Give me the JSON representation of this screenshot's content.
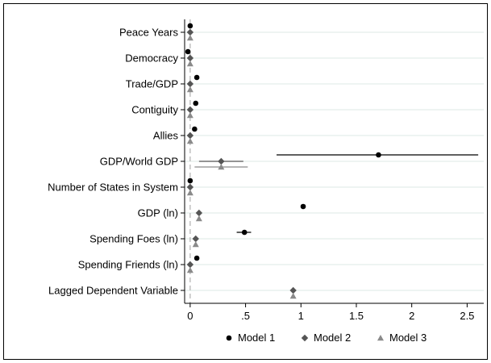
{
  "chart_data": {
    "type": "coefficient-dot-plot",
    "title": "",
    "xlabel": "",
    "ylabel": "",
    "xlim": [
      -0.05,
      2.65
    ],
    "x_ticks": [
      0,
      0.5,
      1,
      1.5,
      2,
      2.5
    ],
    "x_tick_labels": [
      "0",
      ".5",
      "1",
      "1.5",
      "2",
      "2.5"
    ],
    "reference_line_x": 0,
    "grid": "horizontal",
    "legend_position": "bottom",
    "categories": [
      "Peace Years",
      "Democracy",
      "Trade/GDP",
      "Contiguity",
      "Allies",
      "GDP/World GDP",
      "Number of States in System",
      "GDP (ln)",
      "Spending Foes (ln)",
      "Spending Friends (ln)",
      "Lagged Dependent Variable"
    ],
    "series": [
      {
        "name": "Model 1",
        "marker": "circle",
        "color": "#000000",
        "values": [
          0.0,
          -0.02,
          0.06,
          0.05,
          0.04,
          1.7,
          0.0,
          1.02,
          0.49,
          0.06,
          null
        ],
        "ci": [
          null,
          null,
          null,
          null,
          null,
          [
            0.78,
            2.6
          ],
          null,
          null,
          [
            0.42,
            0.55
          ],
          null,
          null
        ]
      },
      {
        "name": "Model 2",
        "marker": "diamond",
        "color": "#555555",
        "values": [
          0.0,
          0.0,
          0.0,
          0.0,
          0.0,
          0.28,
          0.0,
          0.08,
          0.05,
          0.0,
          0.93
        ],
        "ci": [
          null,
          null,
          null,
          null,
          null,
          [
            0.08,
            0.48
          ],
          null,
          null,
          null,
          null,
          null
        ]
      },
      {
        "name": "Model 3",
        "marker": "triangle",
        "color": "#8a8a8a",
        "values": [
          0.0,
          0.0,
          0.0,
          0.0,
          0.0,
          0.28,
          0.0,
          0.08,
          0.05,
          0.0,
          0.93
        ],
        "ci": [
          null,
          null,
          null,
          null,
          null,
          [
            0.04,
            0.52
          ],
          null,
          null,
          null,
          null,
          null
        ]
      }
    ]
  },
  "colors": {
    "grid": "#dce9e6",
    "zero_line": "#b0b0b0"
  }
}
